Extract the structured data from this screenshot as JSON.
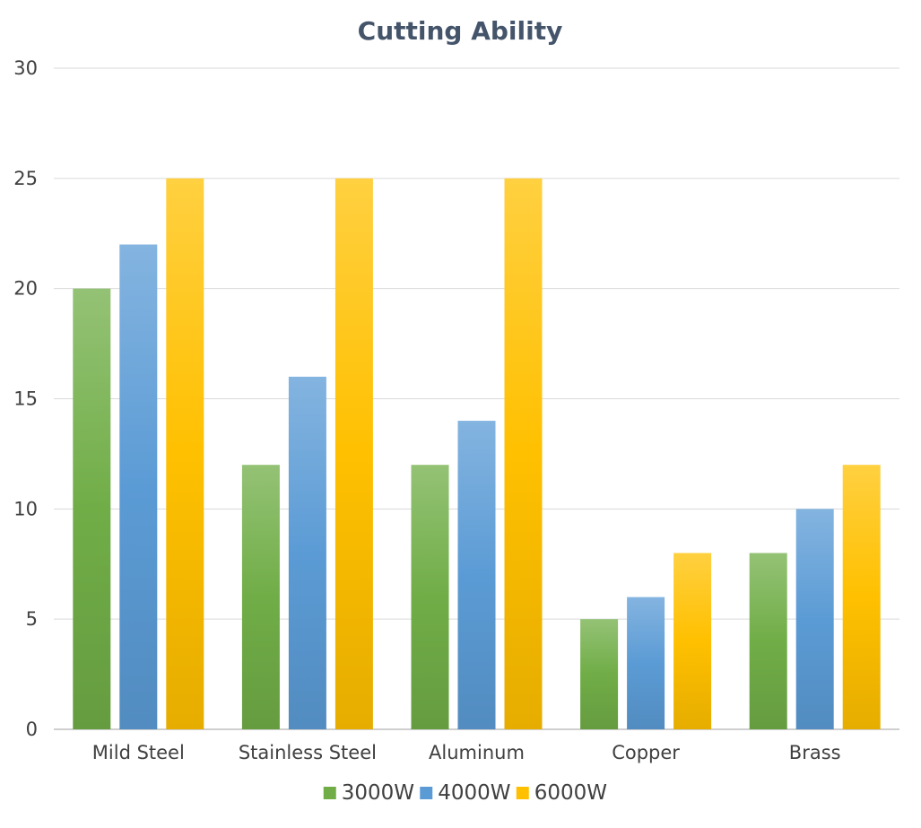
{
  "chart_data": {
    "type": "bar",
    "title": "Cutting Ability",
    "xlabel": "",
    "ylabel": "",
    "categories": [
      "Mild Steel",
      "Stainless Steel",
      "Aluminum",
      "Copper",
      "Brass"
    ],
    "series": [
      {
        "name": "3000W",
        "values": [
          20,
          12,
          12,
          5,
          8
        ],
        "color": "#70ad47"
      },
      {
        "name": "4000W",
        "values": [
          22,
          16,
          14,
          6,
          10
        ],
        "color": "#5b9bd5"
      },
      {
        "name": "6000W",
        "values": [
          25,
          25,
          25,
          8,
          12
        ],
        "color": "#ffc000"
      }
    ],
    "ylim": [
      0,
      30
    ],
    "yticks": [
      0,
      5,
      10,
      15,
      20,
      25,
      30
    ],
    "grid": true,
    "legend": "bottom"
  }
}
